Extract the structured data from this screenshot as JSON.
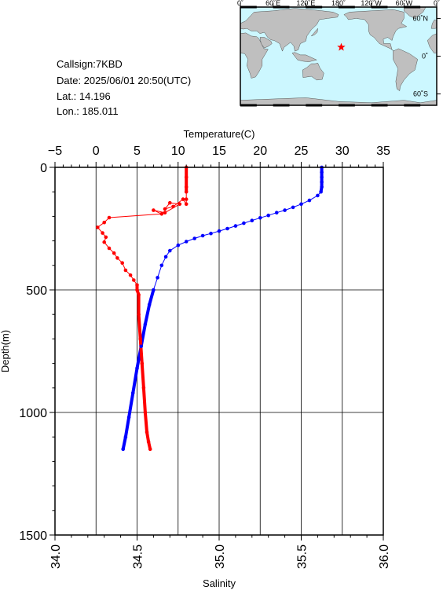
{
  "info": {
    "callsign": "Callsign:7KBD",
    "date": "Date:  2025/06/01 20:50(UTC)",
    "lat": "Lat.:  14.196",
    "lon": "Lon.:  185.011"
  },
  "map": {
    "top_labels": [
      "0˚",
      "60˚E",
      "120˚E",
      "180˚",
      "120˚W",
      "60˚W",
      "0˚"
    ],
    "right_labels": [
      "60˚N",
      "0˚",
      "60˚S"
    ],
    "ocean_color": "#ccf7ff",
    "land_color": "#bfbfbf",
    "marker_color": "#ff0000",
    "marker": "star-icon"
  },
  "chart_data": {
    "type": "scatter",
    "xlabel_top": "Temperature(C)",
    "xlabel_bottom": "Salinity",
    "ylabel": "Depth(m)",
    "temperature_axis": {
      "range": [
        -5,
        35
      ],
      "ticks": [
        -5,
        0,
        5,
        10,
        15,
        20,
        25,
        30,
        35
      ]
    },
    "salinity_axis": {
      "range": [
        34.0,
        36.0
      ],
      "ticks": [
        "34.0",
        "34.5",
        "35.0",
        "35.5",
        "36.0"
      ]
    },
    "depth_axis": {
      "range": [
        0,
        1500
      ],
      "inverted": true,
      "ticks": [
        0,
        500,
        1000,
        1500
      ]
    },
    "grid": true,
    "series": [
      {
        "quantity": "temperature",
        "color": "#0000ff",
        "points": [
          [
            27.5,
            0
          ],
          [
            27.5,
            20
          ],
          [
            27.5,
            40
          ],
          [
            27.5,
            60
          ],
          [
            27.5,
            80
          ],
          [
            27.4,
            100
          ],
          [
            27.0,
            115
          ],
          [
            26.0,
            135
          ],
          [
            25.0,
            150
          ],
          [
            24.0,
            163
          ],
          [
            23.0,
            175
          ],
          [
            22.0,
            185
          ],
          [
            21.0,
            196
          ],
          [
            20.0,
            206
          ],
          [
            19.0,
            217
          ],
          [
            18.0,
            228
          ],
          [
            17.0,
            239
          ],
          [
            16.0,
            250
          ],
          [
            15.0,
            260
          ],
          [
            14.0,
            270
          ],
          [
            13.0,
            279
          ],
          [
            12.0,
            290
          ],
          [
            11.0,
            303
          ],
          [
            10.0,
            318
          ],
          [
            9.0,
            340
          ],
          [
            8.5,
            365
          ],
          [
            8.0,
            400
          ],
          [
            7.5,
            450
          ],
          [
            7.0,
            500
          ],
          [
            6.5,
            560
          ],
          [
            6.0,
            640
          ],
          [
            5.5,
            730
          ],
          [
            5.0,
            820
          ],
          [
            4.5,
            920
          ],
          [
            4.0,
            1020
          ],
          [
            3.6,
            1100
          ],
          [
            3.3,
            1150
          ]
        ]
      },
      {
        "quantity": "salinity",
        "color": "#ff0000",
        "points": [
          [
            34.8,
            0
          ],
          [
            34.8,
            40
          ],
          [
            34.8,
            80
          ],
          [
            34.8,
            100
          ],
          [
            34.8,
            130
          ],
          [
            34.8,
            150
          ],
          [
            34.78,
            130
          ],
          [
            34.72,
            160
          ],
          [
            34.67,
            170
          ],
          [
            34.7,
            145
          ],
          [
            34.76,
            150
          ],
          [
            34.67,
            185
          ],
          [
            34.6,
            175
          ],
          [
            34.65,
            190
          ],
          [
            34.33,
            205
          ],
          [
            34.3,
            225
          ],
          [
            34.26,
            245
          ],
          [
            34.29,
            268
          ],
          [
            34.31,
            285
          ],
          [
            34.3,
            305
          ],
          [
            34.33,
            330
          ],
          [
            34.36,
            350
          ],
          [
            34.38,
            370
          ],
          [
            34.41,
            390
          ],
          [
            34.43,
            420
          ],
          [
            34.46,
            440
          ],
          [
            34.48,
            460
          ],
          [
            34.5,
            480
          ],
          [
            34.5,
            500
          ],
          [
            34.51,
            520
          ],
          [
            34.51,
            600
          ],
          [
            34.52,
            700
          ],
          [
            34.53,
            800
          ],
          [
            34.54,
            900
          ],
          [
            34.55,
            1000
          ],
          [
            34.56,
            1080
          ],
          [
            34.57,
            1120
          ],
          [
            34.58,
            1150
          ]
        ]
      }
    ]
  }
}
